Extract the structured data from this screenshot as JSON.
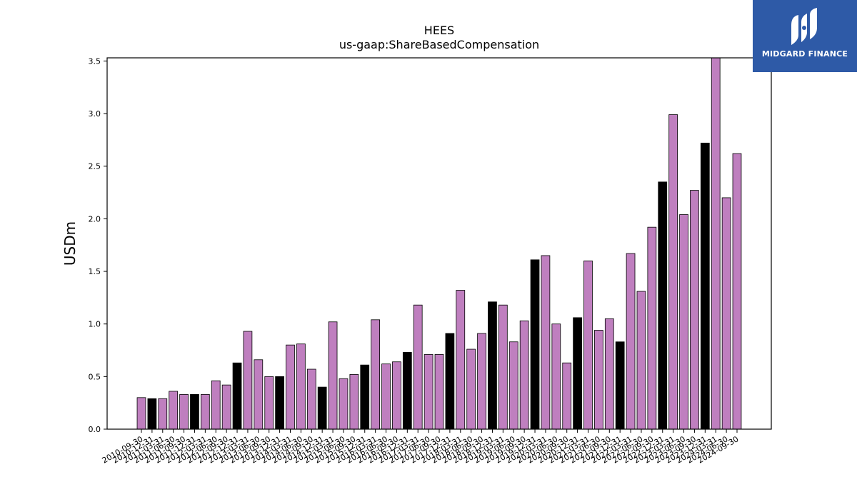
{
  "chart_data": {
    "type": "bar",
    "title": "HEES",
    "subtitle": "us-gaap:ShareBasedCompensation",
    "xlabel": "",
    "ylabel": "USDm",
    "ylim": [
      0,
      3.53
    ],
    "yticks": [
      "0.0",
      "0.5",
      "1.0",
      "1.5",
      "2.0",
      "2.5",
      "3.0",
      "3.5"
    ],
    "grid": false,
    "colors": {
      "quarter": "#bf7fbf",
      "fiscal_year_end": "#000000"
    },
    "categories": [
      "2010-09-30",
      "2010-12-31",
      "2011-03-31",
      "2011-06-30",
      "2011-09-30",
      "2011-12-31",
      "2012-03-31",
      "2012-06-30",
      "2012-09-30",
      "2012-12-31",
      "2013-03-31",
      "2013-06-30",
      "2013-09-30",
      "2013-12-31",
      "2014-03-31",
      "2014-06-30",
      "2014-09-30",
      "2014-12-31",
      "2015-03-31",
      "2015-06-30",
      "2015-09-30",
      "2015-12-31",
      "2016-03-31",
      "2016-06-30",
      "2016-09-30",
      "2016-12-31",
      "2017-03-31",
      "2017-06-30",
      "2017-09-30",
      "2017-12-31",
      "2018-03-31",
      "2018-06-30",
      "2018-09-30",
      "2018-12-31",
      "2019-03-31",
      "2019-06-30",
      "2019-09-30",
      "2019-12-31",
      "2020-03-31",
      "2020-06-30",
      "2020-09-30",
      "2020-12-31",
      "2021-03-31",
      "2021-06-30",
      "2021-09-30",
      "2021-12-31",
      "2022-03-31",
      "2022-06-30",
      "2022-09-30",
      "2022-12-31",
      "2023-03-31",
      "2023-06-30",
      "2023-09-30",
      "2023-12-31",
      "2024-03-31",
      "2024-06-30",
      "2024-09-30"
    ],
    "values": [
      0.3,
      0.29,
      0.29,
      0.36,
      0.33,
      0.33,
      0.33,
      0.46,
      0.42,
      0.63,
      0.93,
      0.66,
      0.5,
      0.5,
      0.8,
      0.81,
      0.57,
      0.4,
      1.02,
      0.48,
      0.52,
      0.61,
      1.04,
      0.62,
      0.64,
      0.73,
      1.18,
      0.71,
      0.71,
      0.91,
      1.32,
      0.76,
      0.91,
      1.21,
      1.18,
      0.83,
      1.03,
      1.61,
      1.65,
      1.0,
      0.63,
      1.06,
      1.6,
      0.94,
      1.05,
      0.83,
      1.67,
      1.31,
      1.92,
      2.35,
      2.99,
      2.04,
      2.27,
      2.72,
      3.53,
      2.2,
      2.62
    ],
    "fiscal_year_end": [
      false,
      true,
      false,
      false,
      false,
      true,
      false,
      false,
      false,
      true,
      false,
      false,
      false,
      true,
      false,
      false,
      false,
      true,
      false,
      false,
      false,
      true,
      false,
      false,
      false,
      true,
      false,
      false,
      false,
      true,
      false,
      false,
      false,
      true,
      false,
      false,
      false,
      true,
      false,
      false,
      false,
      true,
      false,
      false,
      false,
      true,
      false,
      false,
      false,
      true,
      false,
      false,
      false,
      true,
      false,
      false,
      false
    ]
  },
  "logo": {
    "text": "MIDGARD FINANCE",
    "color": "#2e5aa7"
  }
}
